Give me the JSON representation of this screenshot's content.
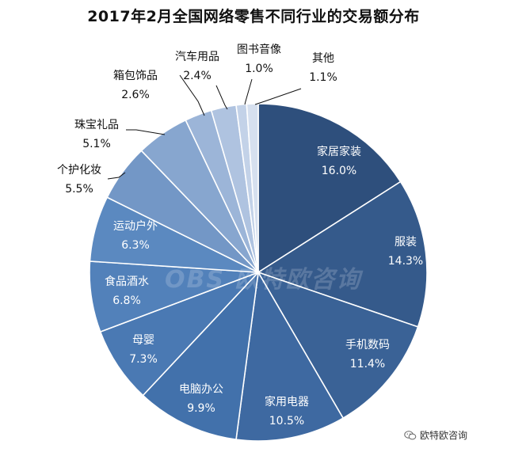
{
  "chart_data": {
    "type": "pie",
    "title": "2017年2月全国网络零售不同行业的交易额分布",
    "slices": [
      {
        "label": "家居家装",
        "value": 16.0,
        "value_label": "16.0%",
        "color": "#2e4f7c"
      },
      {
        "label": "服装",
        "value": 14.3,
        "value_label": "14.3%",
        "color": "#355a8b"
      },
      {
        "label": "手机数码",
        "value": 11.4,
        "value_label": "11.4%",
        "color": "#3a6296"
      },
      {
        "label": "家用电器",
        "value": 10.5,
        "value_label": "10.5%",
        "color": "#3e69a1"
      },
      {
        "label": "电脑办公",
        "value": 9.9,
        "value_label": "9.9%",
        "color": "#4271ab"
      },
      {
        "label": "母婴",
        "value": 7.3,
        "value_label": "7.3%",
        "color": "#4a79b3"
      },
      {
        "label": "食品酒水",
        "value": 6.8,
        "value_label": "6.8%",
        "color": "#5281ba"
      },
      {
        "label": "运动户外",
        "value": 6.3,
        "value_label": "6.3%",
        "color": "#5b89c0"
      },
      {
        "label": "个护化妆",
        "value": 5.5,
        "value_label": "5.5%",
        "color": "#7397c6"
      },
      {
        "label": "珠宝礼品",
        "value": 5.1,
        "value_label": "5.1%",
        "color": "#87a6cf"
      },
      {
        "label": "箱包饰品",
        "value": 2.6,
        "value_label": "2.6%",
        "color": "#9cb5d8"
      },
      {
        "label": "汽车用品",
        "value": 2.4,
        "value_label": "2.4%",
        "color": "#afc3e0"
      },
      {
        "label": "图书音像",
        "value": 1.0,
        "value_label": "1.0%",
        "color": "#c3d2e8"
      },
      {
        "label": "其他",
        "value": 1.1,
        "value_label": "1.1%",
        "color": "#d6e0ef"
      }
    ],
    "start_angle": "12 o'clock",
    "direction": "clockwise"
  },
  "watermark": "OBS 欧特欧咨询",
  "footer": {
    "brand": "欧特欧咨询",
    "icon": "wechat-icon"
  }
}
